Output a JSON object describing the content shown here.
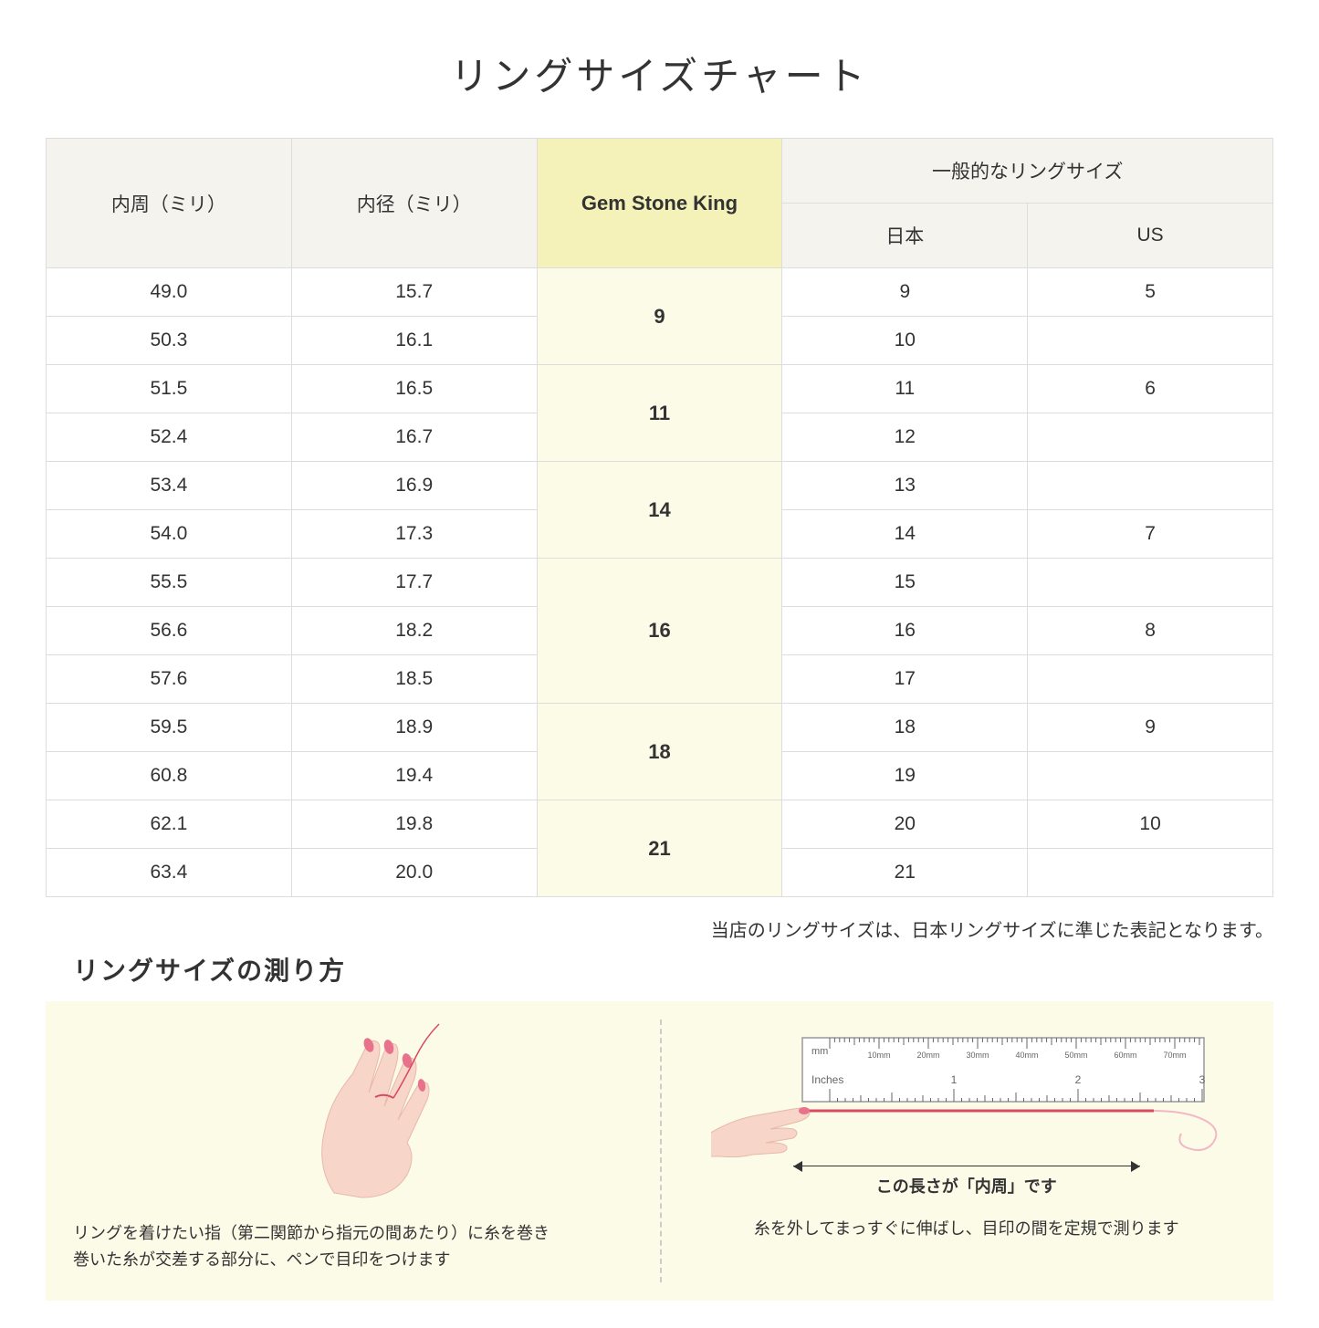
{
  "title": "リングサイズチャート",
  "headers": {
    "circumference": "内周（ミリ）",
    "diameter": "内径（ミリ）",
    "gemstone": "Gem Stone King",
    "general": "一般的なリングサイズ",
    "japan": "日本",
    "us": "US"
  },
  "rows": [
    {
      "circ": "49.0",
      "dia": "15.7",
      "jp": "9",
      "us": "5"
    },
    {
      "circ": "50.3",
      "dia": "16.1",
      "jp": "10",
      "us": ""
    },
    {
      "circ": "51.5",
      "dia": "16.5",
      "jp": "11",
      "us": "6"
    },
    {
      "circ": "52.4",
      "dia": "16.7",
      "jp": "12",
      "us": ""
    },
    {
      "circ": "53.4",
      "dia": "16.9",
      "jp": "13",
      "us": ""
    },
    {
      "circ": "54.0",
      "dia": "17.3",
      "jp": "14",
      "us": "7"
    },
    {
      "circ": "55.5",
      "dia": "17.7",
      "jp": "15",
      "us": ""
    },
    {
      "circ": "56.6",
      "dia": "18.2",
      "jp": "16",
      "us": "8"
    },
    {
      "circ": "57.6",
      "dia": "18.5",
      "jp": "17",
      "us": ""
    },
    {
      "circ": "59.5",
      "dia": "18.9",
      "jp": "18",
      "us": "9"
    },
    {
      "circ": "60.8",
      "dia": "19.4",
      "jp": "19",
      "us": ""
    },
    {
      "circ": "62.1",
      "dia": "19.8",
      "jp": "20",
      "us": "10"
    },
    {
      "circ": "63.4",
      "dia": "20.0",
      "jp": "21",
      "us": ""
    }
  ],
  "gemstone_groups": [
    {
      "size": "9",
      "span": 2
    },
    {
      "size": "11",
      "span": 2
    },
    {
      "size": "14",
      "span": 2
    },
    {
      "size": "16",
      "span": 3
    },
    {
      "size": "18",
      "span": 2
    },
    {
      "size": "21",
      "span": 2
    }
  ],
  "note": "当店のリングサイズは、日本リングサイズに準じた表記となります。",
  "measure": {
    "title": "リングサイズの測り方",
    "left_caption": "リングを着けたい指（第二関節から指元の間あたり）に糸を巻き\n巻いた糸が交差する部分に、ペンで目印をつけます",
    "right_label": "この長さが「内周」です",
    "right_caption": "糸を外してまっすぐに伸ばし、目印の間を定規で測ります",
    "ruler_mm": "mm",
    "ruler_inches": "Inches",
    "ruler_ticks": [
      "10mm",
      "20mm",
      "30mm",
      "40mm",
      "50mm",
      "60mm",
      "70mm"
    ]
  },
  "colors": {
    "header_bg": "#f5f3ee",
    "highlight_header_bg": "#f4f2b8",
    "highlight_cell_bg": "#fcfbe8",
    "border": "#dddddd",
    "skin": "#f7d5c8",
    "nail": "#e8718b",
    "thread": "#d94a5f"
  }
}
